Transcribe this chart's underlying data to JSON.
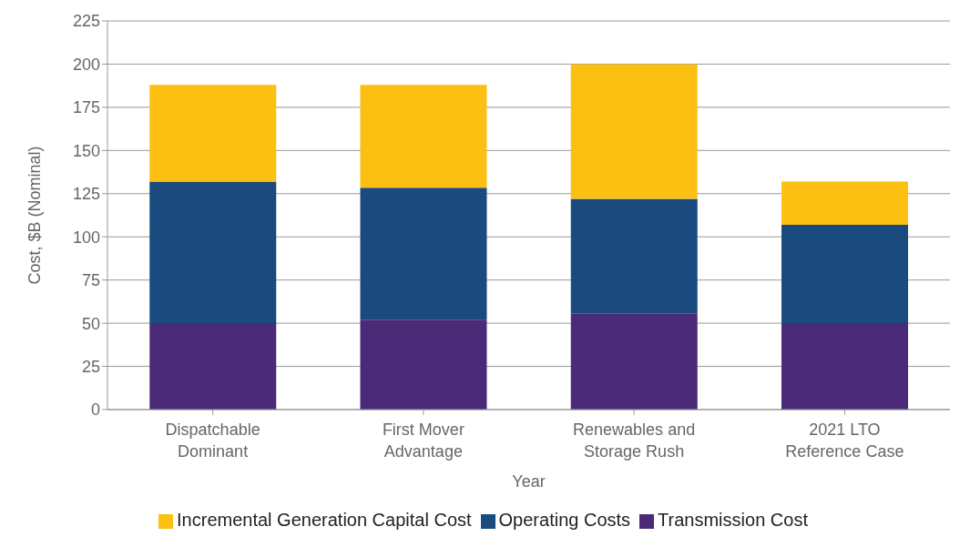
{
  "chart_data": {
    "type": "bar",
    "stacked": true,
    "xlabel": "Year",
    "ylabel": "Cost, $B (Nominal)",
    "categories": [
      "Dispatchable Dominant",
      "First Mover Advantage",
      "Renewables and Storage Rush",
      "2021 LTO Reference Case"
    ],
    "series": [
      {
        "name": "Transmission Cost",
        "color": "#4b2a77",
        "values": [
          50,
          52,
          55.5,
          50
        ]
      },
      {
        "name": "Operating Costs",
        "color": "#1a4a7e",
        "values": [
          82,
          76.5,
          66.5,
          57
        ]
      },
      {
        "name": "Incremental Generation Capital Cost",
        "color": "#fbc012",
        "values": [
          56,
          59.5,
          78,
          25
        ]
      }
    ],
    "ylim": [
      0,
      225
    ],
    "yticks": [
      0,
      25,
      50,
      75,
      100,
      125,
      150,
      175,
      200,
      225
    ],
    "grid": "y",
    "legend": "bottom"
  }
}
